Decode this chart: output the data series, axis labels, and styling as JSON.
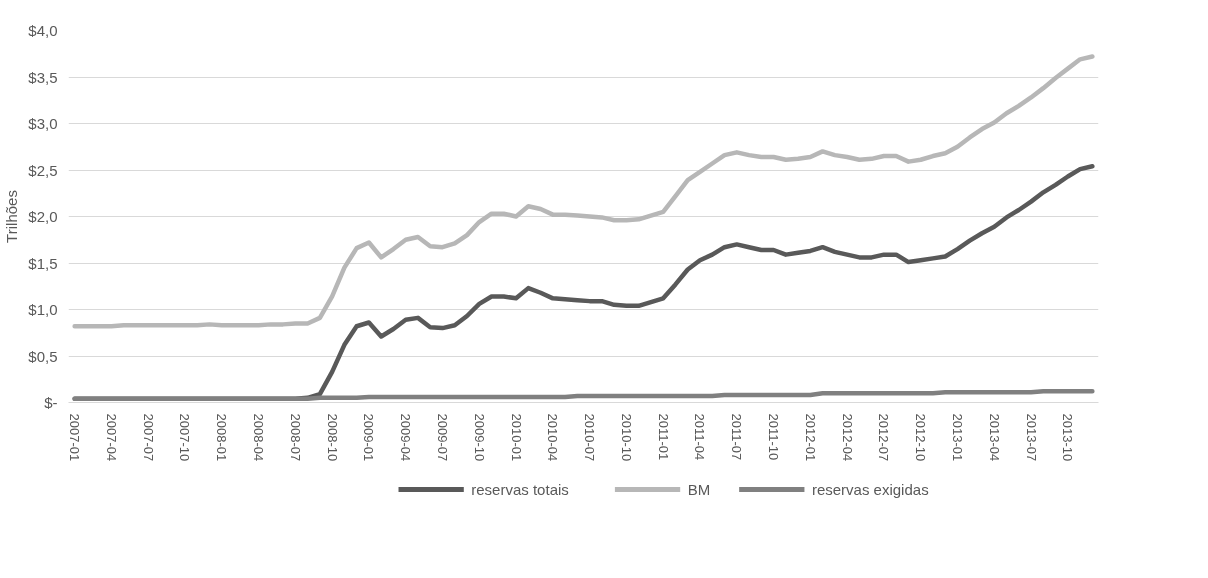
{
  "chart_data": {
    "type": "line",
    "ylabel": "Trilhões",
    "categories": [
      "2007-01",
      null,
      null,
      "2007-04",
      null,
      null,
      "2007-07",
      null,
      null,
      "2007-10",
      null,
      null,
      "2008-01",
      null,
      null,
      "2008-04",
      null,
      null,
      "2008-07",
      null,
      null,
      "2008-10",
      null,
      null,
      "2009-01",
      null,
      null,
      "2009-04",
      null,
      null,
      "2009-07",
      null,
      null,
      "2009-10",
      null,
      null,
      "2010-01",
      null,
      null,
      "2010-04",
      null,
      null,
      "2010-07",
      null,
      null,
      "2010-10",
      null,
      null,
      "2011-01",
      null,
      null,
      "2011-04",
      null,
      null,
      "2011-07",
      null,
      null,
      "2011-10",
      null,
      null,
      "2012-01",
      null,
      null,
      "2012-04",
      null,
      null,
      "2012-07",
      null,
      null,
      "2012-10",
      null,
      null,
      "2013-01",
      null,
      null,
      "2013-04",
      null,
      null,
      "2013-07",
      null,
      null,
      "2013-10",
      null,
      null
    ],
    "series": [
      {
        "name": "reservas totais",
        "color": "#595959",
        "values": [
          0.04,
          0.04,
          0.04,
          0.04,
          0.04,
          0.04,
          0.04,
          0.04,
          0.04,
          0.04,
          0.04,
          0.04,
          0.04,
          0.04,
          0.04,
          0.04,
          0.04,
          0.04,
          0.04,
          0.05,
          0.09,
          0.33,
          0.62,
          0.82,
          0.86,
          0.71,
          0.79,
          0.89,
          0.91,
          0.81,
          0.8,
          0.83,
          0.93,
          1.06,
          1.14,
          1.14,
          1.12,
          1.23,
          1.18,
          1.12,
          1.11,
          1.1,
          1.09,
          1.09,
          1.05,
          1.04,
          1.04,
          1.08,
          1.12,
          1.27,
          1.43,
          1.53,
          1.59,
          1.67,
          1.7,
          1.67,
          1.64,
          1.64,
          1.59,
          1.61,
          1.63,
          1.67,
          1.62,
          1.59,
          1.56,
          1.56,
          1.59,
          1.59,
          1.51,
          1.53,
          1.55,
          1.57,
          1.65,
          1.74,
          1.82,
          1.89,
          1.99,
          2.07,
          2.16,
          2.26,
          2.34,
          2.43,
          2.51,
          2.54
        ]
      },
      {
        "name": "BM",
        "color": "#b7b7b7",
        "values": [
          0.82,
          0.82,
          0.82,
          0.82,
          0.83,
          0.83,
          0.83,
          0.83,
          0.83,
          0.83,
          0.83,
          0.84,
          0.83,
          0.83,
          0.83,
          0.83,
          0.84,
          0.84,
          0.85,
          0.85,
          0.91,
          1.14,
          1.45,
          1.66,
          1.72,
          1.56,
          1.65,
          1.75,
          1.78,
          1.68,
          1.67,
          1.71,
          1.8,
          1.94,
          2.03,
          2.03,
          2.0,
          2.11,
          2.08,
          2.02,
          2.02,
          2.01,
          2.0,
          1.99,
          1.96,
          1.96,
          1.97,
          2.01,
          2.05,
          2.22,
          2.39,
          2.48,
          2.57,
          2.66,
          2.69,
          2.66,
          2.64,
          2.64,
          2.61,
          2.62,
          2.64,
          2.7,
          2.66,
          2.64,
          2.61,
          2.62,
          2.65,
          2.65,
          2.59,
          2.61,
          2.65,
          2.68,
          2.75,
          2.85,
          2.94,
          3.01,
          3.11,
          3.19,
          3.28,
          3.38,
          3.49,
          3.59,
          3.69,
          3.72
        ]
      },
      {
        "name": "reservas exigidas",
        "color": "#808080",
        "values": [
          0.04,
          0.04,
          0.04,
          0.04,
          0.04,
          0.04,
          0.04,
          0.04,
          0.04,
          0.04,
          0.04,
          0.04,
          0.04,
          0.04,
          0.04,
          0.04,
          0.04,
          0.04,
          0.04,
          0.04,
          0.05,
          0.05,
          0.05,
          0.05,
          0.06,
          0.06,
          0.06,
          0.06,
          0.06,
          0.06,
          0.06,
          0.06,
          0.06,
          0.06,
          0.06,
          0.06,
          0.06,
          0.06,
          0.06,
          0.06,
          0.06,
          0.07,
          0.07,
          0.07,
          0.07,
          0.07,
          0.07,
          0.07,
          0.07,
          0.07,
          0.07,
          0.07,
          0.07,
          0.08,
          0.08,
          0.08,
          0.08,
          0.08,
          0.08,
          0.08,
          0.08,
          0.1,
          0.1,
          0.1,
          0.1,
          0.1,
          0.1,
          0.1,
          0.1,
          0.1,
          0.1,
          0.11,
          0.11,
          0.11,
          0.11,
          0.11,
          0.11,
          0.11,
          0.11,
          0.12,
          0.12,
          0.12,
          0.12,
          0.12
        ]
      }
    ],
    "ylim": [
      0,
      4.0
    ],
    "yticks": [
      {
        "value": 0,
        "label": "$-"
      },
      {
        "value": 0.5,
        "label": "$0,5"
      },
      {
        "value": 1.0,
        "label": "$1,0"
      },
      {
        "value": 1.5,
        "label": "$1,5"
      },
      {
        "value": 2.0,
        "label": "$2,0"
      },
      {
        "value": 2.5,
        "label": "$2,5"
      },
      {
        "value": 3.0,
        "label": "$3,0"
      },
      {
        "value": 3.5,
        "label": "$3,5"
      },
      {
        "value": 4.0,
        "label": "$4,0"
      }
    ],
    "grid": "y",
    "legend": "bottom",
    "marker": "none",
    "line_style": "solid"
  }
}
